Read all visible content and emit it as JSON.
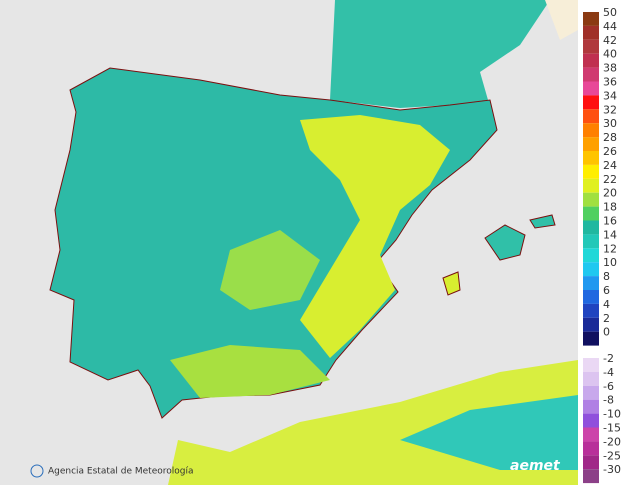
{
  "credit": "Agencia Estatal de Meteorología",
  "logo": "aemet",
  "legend": {
    "positive": [
      {
        "label": 50,
        "color": "#8b3a12"
      },
      {
        "label": 44,
        "color": "#a03028"
      },
      {
        "label": 42,
        "color": "#b0383c"
      },
      {
        "label": 40,
        "color": "#c03050"
      },
      {
        "label": 38,
        "color": "#d03a70"
      },
      {
        "label": 36,
        "color": "#e84898"
      },
      {
        "label": 34,
        "color": "#ff1010"
      },
      {
        "label": 32,
        "color": "#ff5010"
      },
      {
        "label": 30,
        "color": "#ff8000"
      },
      {
        "label": 28,
        "color": "#ffa000"
      },
      {
        "label": 26,
        "color": "#ffc400"
      },
      {
        "label": 24,
        "color": "#ffee00"
      },
      {
        "label": 22,
        "color": "#e0f020"
      },
      {
        "label": 20,
        "color": "#a0e040"
      },
      {
        "label": 18,
        "color": "#50d060"
      },
      {
        "label": 16,
        "color": "#20b8a0"
      },
      {
        "label": 14,
        "color": "#22c8b8"
      },
      {
        "label": 12,
        "color": "#20d8d8"
      },
      {
        "label": 10,
        "color": "#20c8f0"
      },
      {
        "label": 8,
        "color": "#2098f0"
      },
      {
        "label": 6,
        "color": "#2068e0"
      },
      {
        "label": 4,
        "color": "#2044c0"
      },
      {
        "label": 2,
        "color": "#1a2a98"
      },
      {
        "label": 0,
        "color": "#101060"
      }
    ],
    "negative": [
      {
        "label": -2,
        "color": "#ead8f4"
      },
      {
        "label": -4,
        "color": "#dcc4f0"
      },
      {
        "label": -6,
        "color": "#c8a8ec"
      },
      {
        "label": -8,
        "color": "#b080e4"
      },
      {
        "label": -10,
        "color": "#9050dc"
      },
      {
        "label": -15,
        "color": "#cc44aa"
      },
      {
        "label": -20,
        "color": "#b8309a"
      },
      {
        "label": -25,
        "color": "#a02888"
      },
      {
        "label": -30,
        "color": "#8c4088"
      }
    ]
  }
}
